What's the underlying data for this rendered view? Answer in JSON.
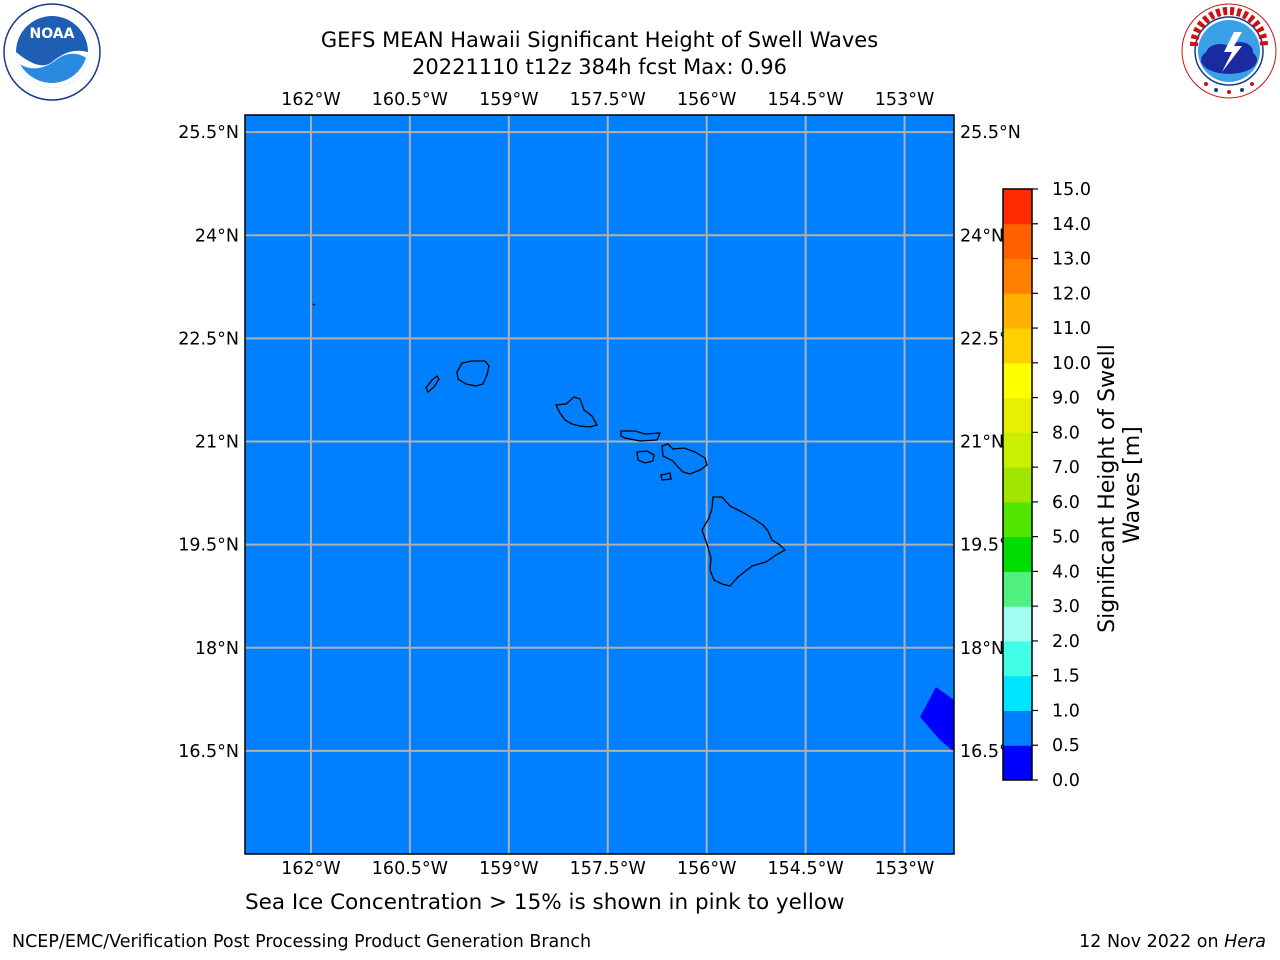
{
  "header": {
    "title_line1": "GEFS MEAN Hawaii Significant Height of Swell Waves",
    "title_line2": "20221110 t12z 384h fcst   Max: 0.96"
  },
  "logos": {
    "left": {
      "icon": "noaa-logo-icon",
      "text": "NOAA",
      "ring_text": "NATIONAL OCEANIC AND ATMOSPHERIC ADMINISTRATION · U.S. DEPARTMENT OF COMMERCE"
    },
    "right": {
      "icon": "nws-logo-icon",
      "ring_text": "NATIONAL WEATHER SERVICE"
    }
  },
  "map": {
    "region": "Hawaii",
    "lon_ticks": [
      "162°W",
      "160.5°W",
      "159°W",
      "157.5°W",
      "156°W",
      "154.5°W",
      "153°W"
    ],
    "lon_values": [
      -162,
      -160.5,
      -159,
      -157.5,
      -156,
      -154.5,
      -153
    ],
    "lat_ticks": [
      "25.5°N",
      "24°N",
      "22.5°N",
      "21°N",
      "19.5°N",
      "18°N",
      "16.5°N"
    ],
    "lat_values": [
      25.5,
      24,
      22.5,
      21,
      19.5,
      18,
      16.5
    ],
    "lon_range": [
      -163,
      -152.25
    ],
    "lat_range": [
      15,
      25.75
    ],
    "background_color": "#0080ff",
    "grid_color": "#b0b0b0",
    "coastline_color": "#000000",
    "low_value_patch_color": "#0000ff",
    "grid": true
  },
  "colorbar": {
    "label": "Significant Height of Swell Waves [m]",
    "ticks": [
      "0.0",
      "0.5",
      "1.0",
      "1.5",
      "2.0",
      "3.0",
      "4.0",
      "5.0",
      "6.0",
      "7.0",
      "8.0",
      "9.0",
      "10.0",
      "11.0",
      "12.0",
      "13.0",
      "14.0",
      "15.0"
    ],
    "colors": [
      "#0000ff",
      "#0080ff",
      "#00e5ff",
      "#40ffe6",
      "#a0fff0",
      "#50f080",
      "#00dd00",
      "#50e600",
      "#a0e600",
      "#c8f000",
      "#e6f000",
      "#ffff00",
      "#ffd000",
      "#ffb000",
      "#ff8000",
      "#ff6000",
      "#ff2a00",
      "#ff0000"
    ]
  },
  "caption": "Sea Ice Concentration > 15% is shown in pink to yellow",
  "footer": {
    "left": "NCEP/EMC/Verification Post Processing Product Generation Branch",
    "date": "12 Nov 2022 on ",
    "host": "Hera"
  }
}
